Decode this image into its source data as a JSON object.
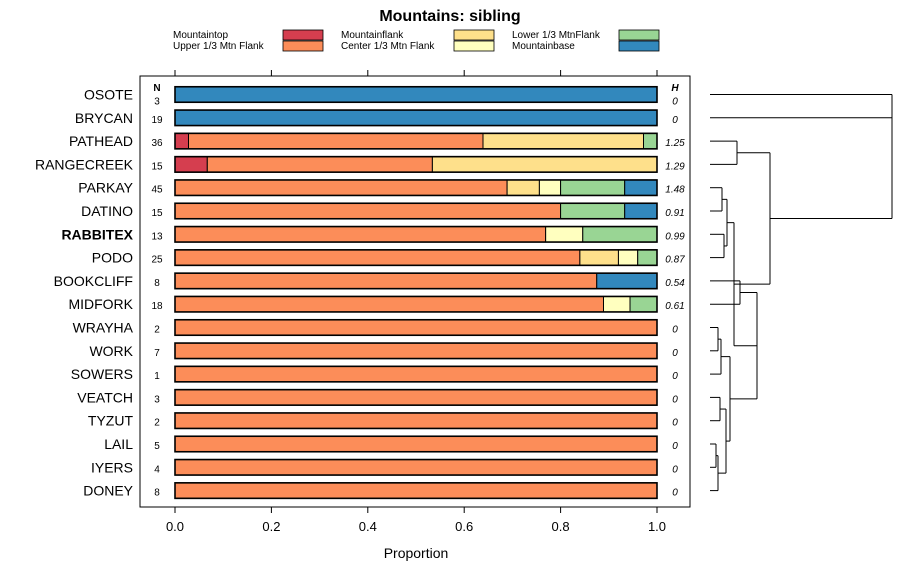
{
  "chart_data": {
    "type": "bar",
    "orientation": "horizontal",
    "stacked": true,
    "title": "Mountains: sibling",
    "xlabel": "Proportion",
    "ylabel": "",
    "xlim": [
      0,
      1
    ],
    "xticks": [
      "0.0",
      "0.2",
      "0.4",
      "0.6",
      "0.8",
      "1.0"
    ],
    "n_header": "N",
    "h_header": "H",
    "highlighted_category": "RABBITEX",
    "legend": [
      {
        "name": "Mountaintop",
        "color": "#d53e4f"
      },
      {
        "name": "Upper 1/3 Mtn Flank",
        "color": "#fc8d59"
      },
      {
        "name": "Mountainflank",
        "color": "#fee08b"
      },
      {
        "name": "Center 1/3 Mtn Flank",
        "color": "#ffffbf"
      },
      {
        "name": "Lower 1/3 MtnFlank",
        "color": "#99d594"
      },
      {
        "name": "Mountainbase",
        "color": "#3288bd"
      }
    ],
    "categories": [
      "OSOTE",
      "BRYCAN",
      "PATHEAD",
      "RANGECREEK",
      "PARKAY",
      "DATINO",
      "RABBITEX",
      "PODO",
      "BOOKCLIFF",
      "MIDFORK",
      "WRAYHA",
      "WORK",
      "SOWERS",
      "VEATCH",
      "TYZUT",
      "LAIL",
      "IYERS",
      "DONEY"
    ],
    "n_values": [
      "3",
      "19",
      "36",
      "15",
      "45",
      "15",
      "13",
      "25",
      "8",
      "18",
      "2",
      "7",
      "1",
      "3",
      "2",
      "5",
      "4",
      "8"
    ],
    "h_values": [
      "0",
      "0",
      "1.25",
      "1.29",
      "1.48",
      "0.91",
      "0.99",
      "0.87",
      "0.54",
      "0.61",
      "0",
      "0",
      "0",
      "0",
      "0",
      "0",
      "0",
      "0"
    ],
    "series": [
      {
        "name": "Mountaintop",
        "values": [
          0,
          0,
          0.028,
          0.067,
          0,
          0,
          0,
          0,
          0,
          0,
          0,
          0,
          0,
          0,
          0,
          0,
          0,
          0
        ]
      },
      {
        "name": "Upper 1/3 Mtn Flank",
        "values": [
          0,
          0,
          0.611,
          0.467,
          0.689,
          0.8,
          0.769,
          0.84,
          0.875,
          0.889,
          1,
          1,
          1,
          1,
          1,
          1,
          1,
          1
        ]
      },
      {
        "name": "Mountainflank",
        "values": [
          0,
          0,
          0.333,
          0.466,
          0.067,
          0,
          0,
          0.08,
          0,
          0,
          0,
          0,
          0,
          0,
          0,
          0,
          0,
          0
        ]
      },
      {
        "name": "Center 1/3 Mtn Flank",
        "values": [
          0,
          0,
          0,
          0,
          0.044,
          0,
          0.077,
          0.04,
          0,
          0.055,
          0,
          0,
          0,
          0,
          0,
          0,
          0,
          0
        ]
      },
      {
        "name": "Lower 1/3 MtnFlank",
        "values": [
          0,
          0,
          0.028,
          0,
          0.133,
          0.133,
          0.154,
          0.04,
          0,
          0.056,
          0,
          0,
          0,
          0,
          0,
          0,
          0,
          0
        ]
      },
      {
        "name": "Mountainbase",
        "values": [
          1,
          1,
          0,
          0,
          0.067,
          0.067,
          0,
          0,
          0.125,
          0,
          0,
          0,
          0,
          0,
          0,
          0,
          0,
          0
        ]
      }
    ],
    "dendrogram": "hierarchical clustering tree of the 18 rows"
  }
}
